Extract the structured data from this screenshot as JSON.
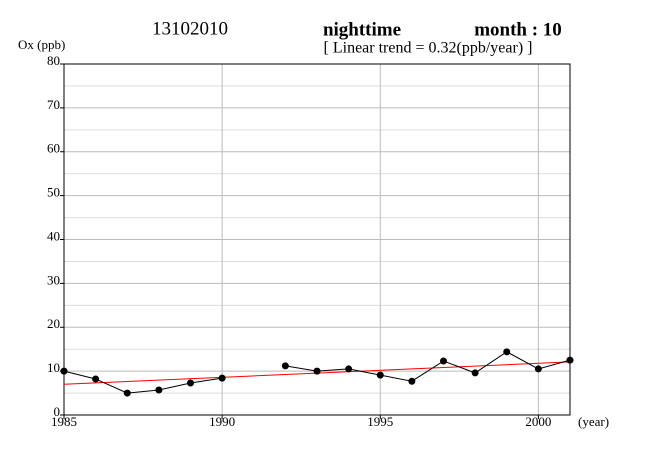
{
  "chart_data": {
    "type": "line",
    "title": "13102010",
    "subtitle": "nighttime",
    "month_label": "month : 10",
    "annotation": "[ Linear trend = 0.32(ppb/year) ]",
    "ylabel": "Ox (ppb)",
    "xlabel": "(year)",
    "x": [
      1985,
      1986,
      1987,
      1988,
      1989,
      1990,
      1991,
      1992,
      1993,
      1994,
      1995,
      1996,
      1997,
      1998,
      1999,
      2000,
      2001
    ],
    "series": [
      {
        "color": "#000000",
        "values": [
          10.0,
          8.2,
          5.0,
          5.7,
          7.3,
          8.4,
          null,
          11.2,
          10.0,
          10.5,
          9.1,
          7.7,
          12.3,
          9.6,
          14.4,
          10.5,
          12.5
        ]
      }
    ],
    "trend": {
      "color": "#ff0000",
      "x": [
        1985,
        2001
      ],
      "values": [
        7.0,
        12.1
      ]
    },
    "xlim": [
      1985,
      2001
    ],
    "xticks": [
      1985,
      1990,
      1995,
      2000
    ],
    "ylim": [
      0,
      80
    ],
    "yticks": [
      0,
      10,
      20,
      30,
      40,
      50,
      60,
      70,
      80
    ],
    "yminor": [
      5,
      15,
      25,
      35,
      45,
      55,
      65,
      75
    ],
    "grid": true
  }
}
